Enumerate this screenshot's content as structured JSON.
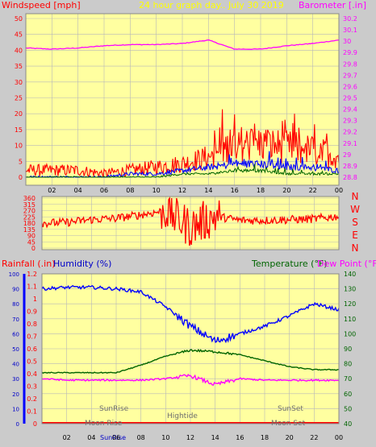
{
  "colors": {
    "panel_bg": "#ffffa0",
    "page_bg": "#cbcbcb",
    "grid": "#b8b8b8",
    "red": "#ff0000",
    "blue": "#0000ff",
    "green": "#006400",
    "magenta": "#ff00ff",
    "darkblue": "#0000c8",
    "title_yellow": "#ffff00",
    "gray_text": "#6e6e6e"
  },
  "header": {
    "windspeed_label": "Windspeed [mph]",
    "title": "24 hour graph day.. July 30 2019",
    "barometer_label": "Barometer [.in]"
  },
  "time_ticks": [
    "02",
    "04",
    "06",
    "08",
    "10",
    "12",
    "14",
    "16",
    "18",
    "20",
    "22",
    "00"
  ],
  "panel1": {
    "left_ticks": [
      "50",
      "45",
      "40",
      "35",
      "30",
      "25",
      "20",
      "15",
      "10",
      "5",
      "0"
    ],
    "right_ticks": [
      "30.2",
      "30.1",
      "30",
      "29.9",
      "29.8",
      "29.7",
      "29.6",
      "29.5",
      "29.4",
      "29.3",
      "29.2",
      "29.1",
      "29",
      "28.9",
      "28.8"
    ]
  },
  "panel2": {
    "left_ticks": [
      "360",
      "315",
      "270",
      "225",
      "180",
      "135",
      "90",
      "45",
      "0"
    ],
    "compass": [
      "N",
      "W",
      "S",
      "E",
      "N"
    ]
  },
  "panel3": {
    "rainfall_label": "Rainfall (.in)",
    "humidity_label": "Humidity (%)",
    "temperature_label": "Temperature (°F)",
    "dewpoint_label": "Dew Point (°F)",
    "humidity_ticks": [
      "100",
      "90",
      "80",
      "70",
      "60",
      "50",
      "40",
      "30",
      "20",
      "10",
      "0"
    ],
    "rain_ticks": [
      "1.2",
      "1.1",
      "1",
      "0.9",
      "0.8",
      "0.7",
      "0.6",
      "0.5",
      "0.4",
      "0.3",
      "0.2",
      "0.1",
      "0"
    ],
    "temp_ticks": [
      "140",
      "130",
      "120",
      "110",
      "100",
      "90",
      "80",
      "70",
      "60",
      "50",
      "40"
    ],
    "annotations": {
      "sunrise": "SunRise",
      "sunset": "SunSet",
      "hightide": "Hightide",
      "moonrise": "Moon Rise",
      "moonset": "Moon Set",
      "sunrise_bottom": "SunRise"
    }
  },
  "chart_data": [
    {
      "type": "line",
      "title": "24 hour graph day.. July 30 2019",
      "x": [
        "00",
        "02",
        "04",
        "06",
        "08",
        "10",
        "12",
        "14",
        "16",
        "18",
        "20",
        "22",
        "00"
      ],
      "ylabel": "Windspeed [mph]",
      "y2label": "Barometer [.in]",
      "ylim": [
        0,
        50
      ],
      "y2lim": [
        28.8,
        30.2
      ],
      "series": [
        {
          "name": "Barometer",
          "axis": "right",
          "values": [
            29.94,
            29.93,
            29.94,
            29.96,
            29.97,
            29.97,
            29.98,
            30.01,
            29.93,
            29.93,
            29.96,
            29.98,
            30.01
          ]
        },
        {
          "name": "Gust",
          "values": [
            2,
            2,
            2,
            1,
            2,
            3,
            4,
            6,
            10,
            10,
            9,
            8,
            6
          ]
        },
        {
          "name": "Average",
          "values": [
            0,
            0,
            0,
            0,
            1,
            1,
            2,
            3,
            4,
            4,
            3,
            3,
            2
          ]
        },
        {
          "name": "Low",
          "values": [
            0,
            0,
            0,
            0,
            0,
            0,
            1,
            1,
            2,
            2,
            1,
            1,
            1
          ]
        }
      ]
    },
    {
      "type": "line",
      "x": [
        "00",
        "02",
        "04",
        "06",
        "08",
        "10",
        "12",
        "14",
        "16",
        "18",
        "20",
        "22",
        "00"
      ],
      "ylabel": "Wind direction",
      "ylim": [
        0,
        360
      ],
      "series": [
        {
          "name": "Direction",
          "values": [
            180,
            185,
            205,
            215,
            240,
            270,
            150,
            230,
            200,
            200,
            205,
            210,
            230
          ]
        }
      ]
    },
    {
      "type": "line",
      "x": [
        "00",
        "02",
        "04",
        "06",
        "08",
        "10",
        "12",
        "14",
        "16",
        "18",
        "20",
        "22",
        "00"
      ],
      "y_rain_lim": [
        0,
        1.2
      ],
      "y_humidity_lim": [
        0,
        100
      ],
      "y_temp_lim": [
        40,
        140
      ],
      "series": [
        {
          "name": "Humidity",
          "axis": "humidity",
          "values": [
            90,
            91,
            91,
            90,
            88,
            78,
            65,
            55,
            60,
            65,
            72,
            80,
            76
          ]
        },
        {
          "name": "Temperature",
          "axis": "temp",
          "values": [
            74,
            74,
            74,
            74,
            79,
            85,
            89,
            88,
            86,
            82,
            78,
            76,
            76
          ]
        },
        {
          "name": "Dew Point",
          "axis": "temp",
          "values": [
            70,
            69,
            69,
            69,
            69,
            70,
            72,
            66,
            70,
            69,
            69,
            69,
            69
          ]
        },
        {
          "name": "Rainfall",
          "axis": "rain",
          "values": [
            0,
            0,
            0,
            0,
            0,
            0,
            0,
            0,
            0,
            0,
            0,
            0,
            0
          ]
        }
      ]
    }
  ]
}
